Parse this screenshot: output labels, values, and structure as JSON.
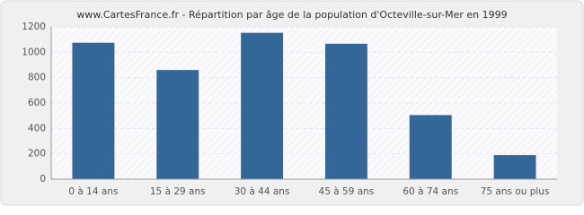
{
  "chart_data": {
    "type": "bar",
    "title": "www.CartesFrance.fr - Répartition par âge de la population d'Octeville-sur-Mer en 1999",
    "categories": [
      "0 à 14 ans",
      "15 à 29 ans",
      "30 à 44 ans",
      "45 à 59 ans",
      "60 à 74 ans",
      "75 ans ou plus"
    ],
    "values": [
      1075,
      860,
      1153,
      1067,
      505,
      190
    ],
    "color": "#336699",
    "ylim": [
      0,
      1200
    ],
    "yticks": [
      0,
      200,
      400,
      600,
      800,
      1000,
      1200
    ],
    "grid": true
  }
}
